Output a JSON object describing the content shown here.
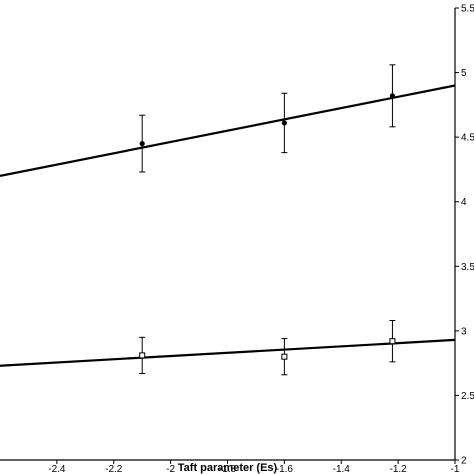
{
  "chart_data": {
    "type": "line",
    "title": "",
    "xlabel": "Taft parameter (Es)",
    "ylabel": "",
    "xlim": [
      -2.6,
      -1.0
    ],
    "ylim": [
      2,
      5.5
    ],
    "grid": false,
    "x_ticks": [
      -2.4,
      -2.2,
      -2.0,
      -1.8,
      -1.6,
      -1.4,
      -1.2,
      -1.0
    ],
    "x_tick_labels": [
      "-2.4",
      "-2.2",
      "-2",
      "-1.8",
      "-1.6",
      "-1.4",
      "-1.2",
      "-1"
    ],
    "y_ticks": [
      2,
      2.5,
      3,
      3.5,
      4,
      4.5,
      5,
      5.5
    ],
    "y_tick_labels": [
      "2",
      "2.5",
      "3",
      "3.5",
      "4",
      "4.5",
      "5",
      "5.5"
    ],
    "y_axis_side": "right",
    "series": [
      {
        "marker": "circle",
        "x": [
          -2.1,
          -1.6,
          -1.22
        ],
        "y": [
          4.45,
          4.61,
          4.82
        ],
        "error": [
          0.22,
          0.23,
          0.24
        ],
        "fit_line": {
          "x": [
            -2.6,
            -1.0
          ],
          "y": [
            4.2,
            4.9
          ]
        }
      },
      {
        "marker": "square",
        "x": [
          -2.1,
          -1.6,
          -1.22
        ],
        "y": [
          2.81,
          2.8,
          2.92
        ],
        "error": [
          0.14,
          0.14,
          0.16
        ],
        "fit_line": {
          "x": [
            -2.6,
            -1.0
          ],
          "y": [
            2.73,
            2.93
          ]
        }
      }
    ]
  }
}
